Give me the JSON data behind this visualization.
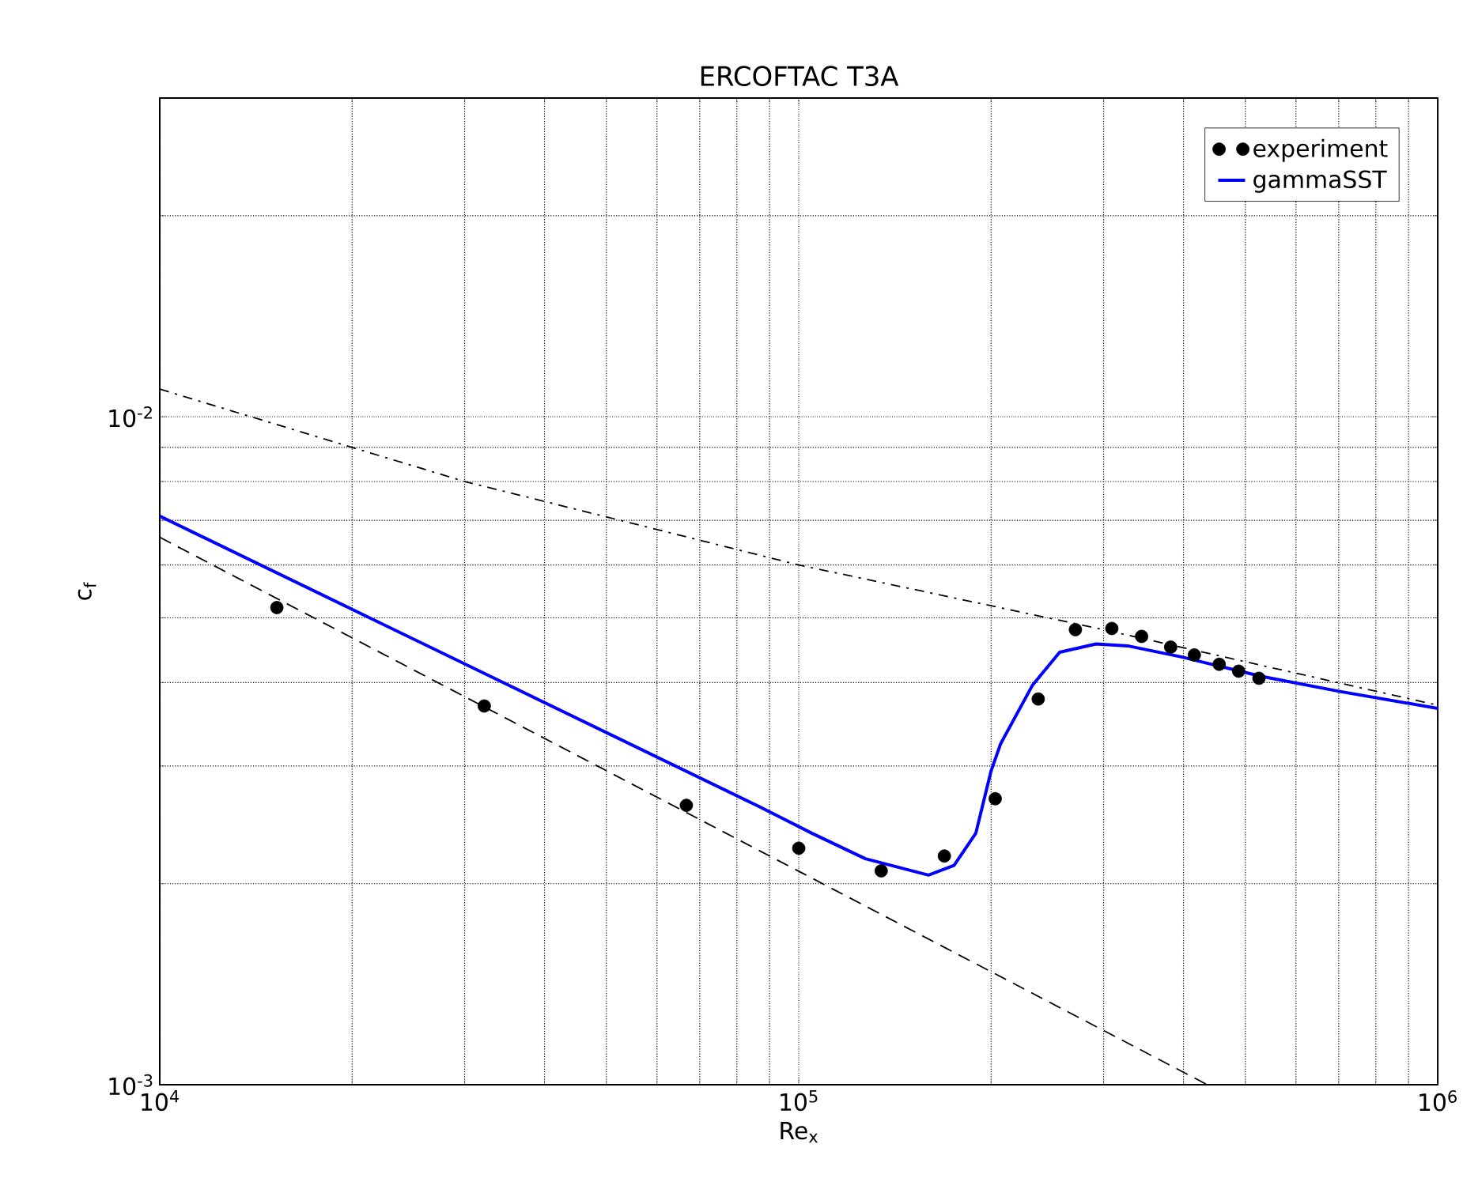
{
  "chart_data": {
    "type": "line",
    "title": "ERCOFTAC T3A",
    "xlabel": "Re$_{x}$",
    "ylabel": "c$_{f}$",
    "log": "xy",
    "xlim": [
      10000,
      1000000
    ],
    "ylim": [
      0.001,
      0.03
    ],
    "xticks": [
      {
        "value": 10000,
        "label": "10$^{4}$"
      },
      {
        "value": 100000,
        "label": "10$^{5}$"
      },
      {
        "value": 1000000,
        "label": "10$^{6}$"
      }
    ],
    "yticks": [
      {
        "value": 0.001,
        "label": "10$^{-3}$"
      },
      {
        "value": 0.01,
        "label": "10$^{-2}$"
      }
    ],
    "grid": true,
    "legend": "top right",
    "series": [
      {
        "name": "experiment",
        "type": "scatter",
        "marker": "circle",
        "color": "#000000",
        "x": [
          15250,
          32200,
          66700,
          100000,
          134600,
          169000,
          203000,
          237000,
          271000,
          309000,
          344000,
          382000,
          416000,
          455000,
          488000,
          525000
        ],
        "values": [
          0.00518,
          0.00369,
          0.00262,
          0.00226,
          0.00209,
          0.0022,
          0.00268,
          0.00378,
          0.0048,
          0.00482,
          0.00469,
          0.00452,
          0.0044,
          0.00426,
          0.00416,
          0.00406
        ]
      },
      {
        "name": "gammaSST",
        "line_style": "solid",
        "color": "#0000ff",
        "x": [
          10000,
          86600,
          104800,
          127100,
          159600,
          175000,
          189300,
          200000,
          207000,
          232000,
          256000,
          292000,
          327000,
          397000,
          528000,
          703000,
          1000000
        ],
        "values": [
          0.0071,
          0.00261,
          0.00238,
          0.00218,
          0.00206,
          0.00213,
          0.00238,
          0.00295,
          0.00324,
          0.00396,
          0.00444,
          0.00457,
          0.00454,
          0.00437,
          0.00409,
          0.00388,
          0.00366
        ]
      },
      {
        "line_style": "dashed",
        "color": "#000000",
        "x": [
          10000,
          436000
        ],
        "values": [
          0.0066,
          0.001
        ]
      },
      {
        "line_style": "dashdot",
        "color": "#000000",
        "x": [
          10000,
          30000,
          100000,
          300000,
          1000000
        ],
        "values": [
          0.011,
          0.008,
          0.006,
          0.0048,
          0.0037
        ]
      }
    ]
  }
}
